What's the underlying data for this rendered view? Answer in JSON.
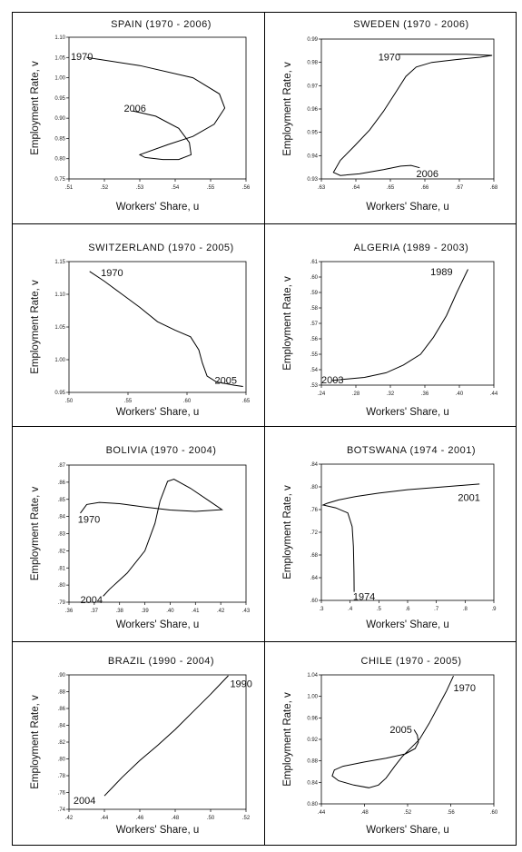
{
  "chart_data": [
    {
      "type": "line",
      "title": "SPAIN (1970 - 2006)",
      "xlabel": "Workers' Share, u",
      "ylabel": "Employment Rate, v",
      "xlim": [
        0.51,
        0.56
      ],
      "ylim": [
        0.75,
        1.1
      ],
      "x_ticks": [
        ".51",
        ".52",
        ".53",
        ".54",
        ".55",
        ".56"
      ],
      "y_ticks": [
        "0.75",
        "0.80",
        "0.85",
        "0.90",
        "0.95",
        "1.00",
        "1.05",
        "1.10"
      ],
      "annotations": [
        {
          "text": "1970",
          "x": 0.5105,
          "y": 1.053
        },
        {
          "text": "2006",
          "x": 0.5255,
          "y": 0.925
        }
      ],
      "series": [
        {
          "values": [
            [
              0.515,
              1.05
            ],
            [
              0.53,
              1.03
            ],
            [
              0.545,
              1.0
            ],
            [
              0.5525,
              0.96
            ],
            [
              0.554,
              0.925
            ],
            [
              0.551,
              0.885
            ],
            [
              0.545,
              0.855
            ],
            [
              0.538,
              0.835
            ],
            [
              0.53,
              0.81
            ],
            [
              0.5315,
              0.803
            ],
            [
              0.5365,
              0.798
            ],
            [
              0.541,
              0.798
            ],
            [
              0.5445,
              0.81
            ],
            [
              0.544,
              0.84
            ],
            [
              0.541,
              0.875
            ],
            [
              0.5345,
              0.905
            ],
            [
              0.528,
              0.918
            ]
          ]
        }
      ]
    },
    {
      "type": "line",
      "title": "SWEDEN (1970 - 2006)",
      "xlabel": "Workers' Share, u",
      "ylabel": "Employment Rate, v",
      "xlim": [
        0.63,
        0.68
      ],
      "ylim": [
        0.93,
        0.99
      ],
      "x_ticks": [
        ".63",
        ".64",
        ".65",
        ".66",
        ".67",
        ".68"
      ],
      "y_ticks": [
        "0.93",
        "0.94",
        "0.95",
        "0.96",
        "0.97",
        "0.98",
        "0.99"
      ],
      "annotations": [
        {
          "text": "1970",
          "x": 0.6465,
          "y": 0.9825
        },
        {
          "text": "2006",
          "x": 0.6575,
          "y": 0.9323
        }
      ],
      "series": [
        {
          "values": [
            [
              0.652,
              0.9835
            ],
            [
              0.662,
              0.9835
            ],
            [
              0.672,
              0.9835
            ],
            [
              0.6795,
              0.983
            ],
            [
              0.676,
              0.9822
            ],
            [
              0.669,
              0.9812
            ],
            [
              0.662,
              0.98
            ],
            [
              0.6575,
              0.978
            ],
            [
              0.6545,
              0.974
            ],
            [
              0.6515,
              0.967
            ],
            [
              0.648,
              0.959
            ],
            [
              0.644,
              0.951
            ],
            [
              0.6395,
              0.944
            ],
            [
              0.6355,
              0.938
            ],
            [
              0.6335,
              0.9328
            ],
            [
              0.6355,
              0.9315
            ],
            [
              0.641,
              0.9322
            ],
            [
              0.648,
              0.934
            ],
            [
              0.653,
              0.9355
            ],
            [
              0.656,
              0.9358
            ],
            [
              0.6585,
              0.9348
            ]
          ]
        }
      ]
    },
    {
      "type": "line",
      "title": "SWITZERLAND (1970 - 2005)",
      "xlabel": "Workers' Share, u",
      "ylabel": "Employment Rate, v",
      "xlim": [
        0.5,
        0.65
      ],
      "ylim": [
        0.95,
        1.15
      ],
      "x_ticks": [
        ".50",
        ".55",
        ".60",
        ".65"
      ],
      "y_ticks": [
        "0.95",
        "1.00",
        "1.05",
        "1.10",
        "1.15"
      ],
      "annotations": [
        {
          "text": "1970",
          "x": 0.527,
          "y": 1.133
        },
        {
          "text": "2005",
          "x": 0.6235,
          "y": 0.969
        }
      ],
      "series": [
        {
          "values": [
            [
              0.5175,
              1.135
            ],
            [
              0.53,
              1.12
            ],
            [
              0.545,
              1.1
            ],
            [
              0.56,
              1.08
            ],
            [
              0.575,
              1.058
            ],
            [
              0.59,
              1.045
            ],
            [
              0.603,
              1.035
            ],
            [
              0.61,
              1.015
            ],
            [
              0.613,
              0.995
            ],
            [
              0.617,
              0.975
            ],
            [
              0.625,
              0.966
            ],
            [
              0.64,
              0.961
            ],
            [
              0.6475,
              0.959
            ]
          ]
        }
      ]
    },
    {
      "type": "line",
      "title": "ALGERIA (1989 - 2003)",
      "xlabel": "Workers' Share, u",
      "ylabel": "Employment Rate, v",
      "xlim": [
        0.24,
        0.44
      ],
      "ylim": [
        0.53,
        0.61
      ],
      "x_ticks": [
        ".24",
        ".28",
        ".32",
        ".36",
        ".40",
        ".44"
      ],
      "y_ticks": [
        ".53",
        ".54",
        ".55",
        ".56",
        ".57",
        ".58",
        ".59",
        ".60",
        ".61"
      ],
      "annotations": [
        {
          "text": "1989",
          "x": 0.3665,
          "y": 0.6035
        },
        {
          "text": "2003",
          "x": 0.24,
          "y": 0.5335
        }
      ],
      "series": [
        {
          "values": [
            [
              0.2525,
              0.533
            ],
            [
              0.27,
              0.534
            ],
            [
              0.29,
              0.535
            ],
            [
              0.315,
              0.538
            ],
            [
              0.335,
              0.543
            ],
            [
              0.355,
              0.55
            ],
            [
              0.37,
              0.561
            ],
            [
              0.385,
              0.575
            ],
            [
              0.397,
              0.59
            ],
            [
              0.41,
              0.605
            ]
          ]
        }
      ]
    },
    {
      "type": "line",
      "title": "BOLIVIA (1970 - 2004)",
      "xlabel": "Workers' Share, u",
      "ylabel": "Employment Rate, v",
      "xlim": [
        0.36,
        0.43
      ],
      "ylim": [
        0.79,
        0.87
      ],
      "x_ticks": [
        ".36",
        ".37",
        ".38",
        ".39",
        ".40",
        ".41",
        ".42",
        ".43"
      ],
      "y_ticks": [
        ".79",
        ".80",
        ".81",
        ".82",
        ".83",
        ".84",
        ".85",
        ".86",
        ".87"
      ],
      "annotations": [
        {
          "text": "1970",
          "x": 0.3635,
          "y": 0.8385
        },
        {
          "text": "2004",
          "x": 0.3645,
          "y": 0.7915
        }
      ],
      "series": [
        {
          "values": [
            [
              0.3645,
              0.842
            ],
            [
              0.367,
              0.847
            ],
            [
              0.372,
              0.8482
            ],
            [
              0.38,
              0.8475
            ],
            [
              0.39,
              0.8455
            ],
            [
              0.4,
              0.8438
            ],
            [
              0.41,
              0.843
            ],
            [
              0.4205,
              0.844
            ],
            [
              0.416,
              0.8485
            ],
            [
              0.408,
              0.8565
            ],
            [
              0.4015,
              0.8618
            ],
            [
              0.399,
              0.8605
            ],
            [
              0.396,
              0.849
            ],
            [
              0.394,
              0.836
            ],
            [
              0.39,
              0.82
            ],
            [
              0.383,
              0.807
            ],
            [
              0.376,
              0.7975
            ],
            [
              0.3735,
              0.7935
            ]
          ]
        }
      ]
    },
    {
      "type": "line",
      "title": "BOTSWANA (1974 - 2001)",
      "xlabel": "Workers' Share, u",
      "ylabel": "Employment Rate, v",
      "xlim": [
        0.3,
        0.9
      ],
      "ylim": [
        0.6,
        0.84
      ],
      "x_ticks": [
        ".3",
        ".4",
        ".5",
        ".6",
        ".7",
        ".8",
        ".9"
      ],
      "y_ticks": [
        ".60",
        ".64",
        ".68",
        ".72",
        ".76",
        ".80",
        ".84"
      ],
      "annotations": [
        {
          "text": "2001",
          "x": 0.775,
          "y": 0.782
        },
        {
          "text": "1974",
          "x": 0.41,
          "y": 0.607
        }
      ],
      "series": [
        {
          "values": [
            [
              0.414,
              0.615
            ],
            [
              0.4135,
              0.65
            ],
            [
              0.4115,
              0.695
            ],
            [
              0.407,
              0.73
            ],
            [
              0.392,
              0.754
            ],
            [
              0.35,
              0.763
            ],
            [
              0.306,
              0.768
            ],
            [
              0.32,
              0.771
            ],
            [
              0.36,
              0.777
            ],
            [
              0.42,
              0.783
            ],
            [
              0.5,
              0.789
            ],
            [
              0.6,
              0.795
            ],
            [
              0.7,
              0.799
            ],
            [
              0.8,
              0.803
            ],
            [
              0.85,
              0.805
            ]
          ]
        }
      ]
    },
    {
      "type": "line",
      "title": "BRAZIL (1990 - 2004)",
      "xlabel": "Workers' Share, u",
      "ylabel": "Employment Rate, v",
      "xlim": [
        0.42,
        0.52
      ],
      "ylim": [
        0.74,
        0.9
      ],
      "x_ticks": [
        ".42",
        ".44",
        ".46",
        ".48",
        ".50",
        ".52"
      ],
      "y_ticks": [
        ".74",
        ".76",
        ".78",
        ".80",
        ".82",
        ".84",
        ".86",
        ".88",
        ".90"
      ],
      "annotations": [
        {
          "text": "1990",
          "x": 0.511,
          "y": 0.89
        },
        {
          "text": "2004",
          "x": 0.4225,
          "y": 0.751
        }
      ],
      "series": [
        {
          "values": [
            [
              0.44,
              0.756
            ],
            [
              0.45,
              0.778
            ],
            [
              0.46,
              0.798
            ],
            [
              0.47,
              0.816
            ],
            [
              0.48,
              0.835
            ],
            [
              0.49,
              0.856
            ],
            [
              0.5,
              0.877
            ],
            [
              0.51,
              0.899
            ]
          ]
        }
      ]
    },
    {
      "type": "line",
      "title": "CHILE (1970 - 2005)",
      "xlabel": "Workers' Share, u",
      "ylabel": "Employment Rate, v",
      "xlim": [
        0.44,
        0.6
      ],
      "ylim": [
        0.8,
        1.04
      ],
      "x_ticks": [
        ".44",
        ".48",
        ".52",
        ".56",
        ".60"
      ],
      "y_ticks": [
        "0.80",
        "0.84",
        "0.88",
        "0.92",
        "0.96",
        "1.00",
        "1.04"
      ],
      "annotations": [
        {
          "text": "1970",
          "x": 0.5625,
          "y": 1.0165
        },
        {
          "text": "2005",
          "x": 0.5035,
          "y": 0.9385
        }
      ],
      "series": [
        {
          "values": [
            [
              0.5625,
              1.038
            ],
            [
              0.556,
              1.01
            ],
            [
              0.548,
              0.98
            ],
            [
              0.54,
              0.95
            ],
            [
              0.531,
              0.92
            ],
            [
              0.522,
              0.902
            ],
            [
              0.515,
              0.888
            ],
            [
              0.508,
              0.87
            ],
            [
              0.5,
              0.848
            ],
            [
              0.493,
              0.835
            ],
            [
              0.484,
              0.83
            ],
            [
              0.47,
              0.835
            ],
            [
              0.456,
              0.843
            ],
            [
              0.45,
              0.852
            ],
            [
              0.452,
              0.863
            ],
            [
              0.46,
              0.87
            ],
            [
              0.48,
              0.878
            ],
            [
              0.5,
              0.885
            ],
            [
              0.518,
              0.893
            ],
            [
              0.527,
              0.903
            ],
            [
              0.53,
              0.915
            ],
            [
              0.529,
              0.928
            ],
            [
              0.526,
              0.938
            ]
          ]
        }
      ]
    }
  ]
}
